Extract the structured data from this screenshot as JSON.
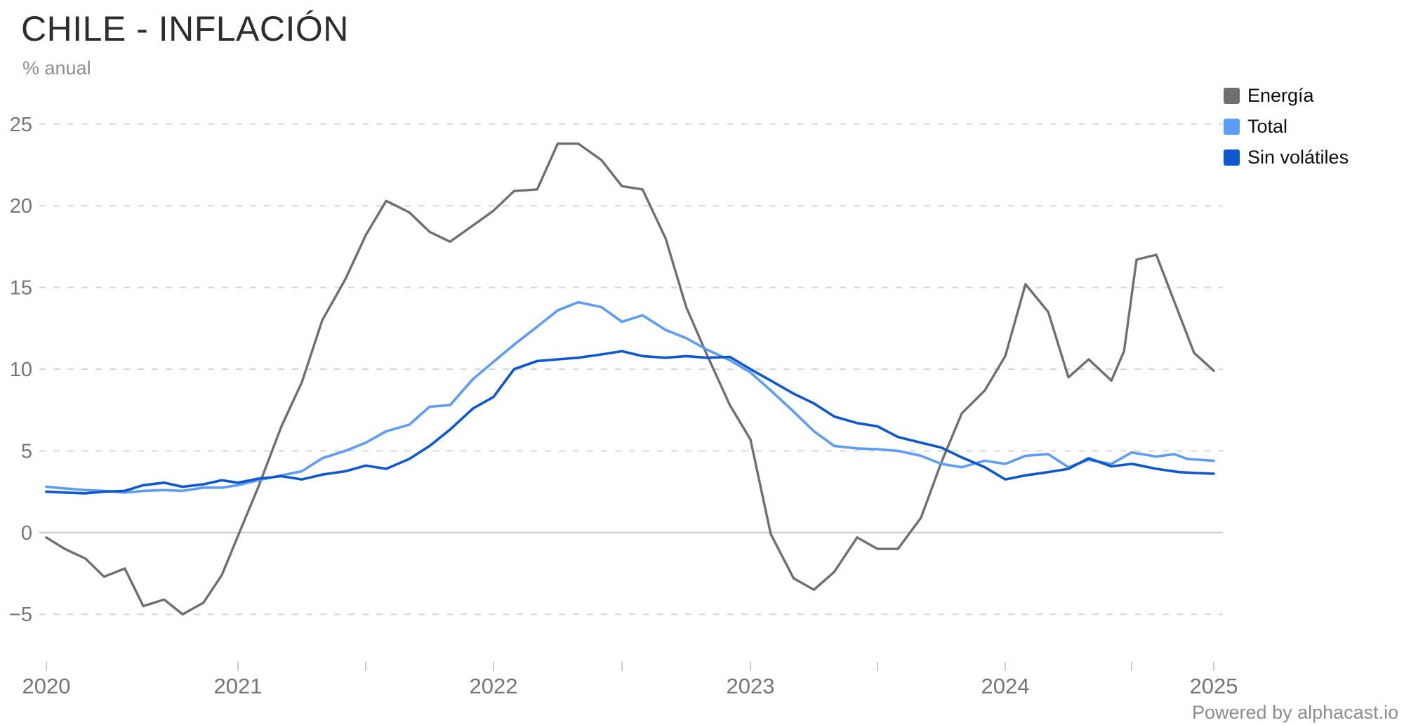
{
  "header": {
    "title": "CHILE - INFLACIÓN",
    "subtitle": "% anual"
  },
  "legend": {
    "items": [
      {
        "label": "Energía"
      },
      {
        "label": "Total"
      },
      {
        "label": "Sin volátiles"
      }
    ]
  },
  "footer": {
    "powered_by": "Powered by alphacast.io"
  },
  "colors": {
    "energia": "#6f6f6f",
    "total": "#5d9cf7",
    "sin_volatiles": "#0d57cf",
    "gridline": "#d7d7d7",
    "zero_line": "#c9c9c9",
    "axis_text": "#757575",
    "title_text": "#2d2d2d"
  },
  "chart_data": {
    "type": "line",
    "title": "CHILE - INFLACIÓN",
    "xlabel": "",
    "ylabel": "% anual",
    "x_unit": "decimal years (monthly points, Mar 2020 - Jan 2025)",
    "ylim": [
      -7.5,
      27
    ],
    "grid": "dashed horizontal gridlines, solid line at 0",
    "legend_position": "top-right",
    "y_ticks": [
      25,
      20,
      15,
      10,
      5,
      0,
      -5
    ],
    "x_ticks": [
      {
        "t": 2020.17,
        "label": "2020"
      },
      {
        "t": 2021.0,
        "label": "2021"
      },
      {
        "t": 2021.5,
        "label": ""
      },
      {
        "t": 2022.0,
        "label": "2022"
      },
      {
        "t": 2022.5,
        "label": ""
      },
      {
        "t": 2023.0,
        "label": "2023"
      },
      {
        "t": 2023.5,
        "label": ""
      },
      {
        "t": 2024.0,
        "label": "2024"
      },
      {
        "t": 2024.5,
        "label": ""
      },
      {
        "t": 2025.0,
        "label": "2025"
      }
    ],
    "series": [
      {
        "name": "Energía",
        "color": "#6f6f6f",
        "width": 3.4,
        "points": [
          [
            2020.17,
            -0.3
          ],
          [
            2020.25,
            -1.0
          ],
          [
            2020.34,
            -1.6
          ],
          [
            2020.42,
            -2.7
          ],
          [
            2020.51,
            -2.2
          ],
          [
            2020.59,
            -4.5
          ],
          [
            2020.68,
            -4.1
          ],
          [
            2020.76,
            -5.0
          ],
          [
            2020.85,
            -4.3
          ],
          [
            2020.93,
            -2.6
          ],
          [
            2021.0,
            -0.2
          ],
          [
            2021.08,
            2.8
          ],
          [
            2021.17,
            6.5
          ],
          [
            2021.25,
            9.2
          ],
          [
            2021.33,
            13.0
          ],
          [
            2021.42,
            15.5
          ],
          [
            2021.5,
            18.2
          ],
          [
            2021.58,
            20.3
          ],
          [
            2021.67,
            19.6
          ],
          [
            2021.75,
            18.4
          ],
          [
            2021.83,
            17.8
          ],
          [
            2021.92,
            18.8
          ],
          [
            2022.0,
            19.7
          ],
          [
            2022.08,
            20.9
          ],
          [
            2022.17,
            21.0
          ],
          [
            2022.25,
            23.8
          ],
          [
            2022.33,
            23.8
          ],
          [
            2022.42,
            22.8
          ],
          [
            2022.5,
            21.2
          ],
          [
            2022.58,
            21.0
          ],
          [
            2022.67,
            18.0
          ],
          [
            2022.75,
            13.8
          ],
          [
            2022.83,
            10.9
          ],
          [
            2022.92,
            7.8
          ],
          [
            2023.0,
            5.7
          ],
          [
            2023.08,
            -0.1
          ],
          [
            2023.17,
            -2.8
          ],
          [
            2023.25,
            -3.5
          ],
          [
            2023.33,
            -2.4
          ],
          [
            2023.42,
            -0.3
          ],
          [
            2023.5,
            -1.0
          ],
          [
            2023.58,
            -1.0
          ],
          [
            2023.67,
            0.9
          ],
          [
            2023.75,
            4.3
          ],
          [
            2023.83,
            7.3
          ],
          [
            2023.92,
            8.7
          ],
          [
            2024.0,
            10.8
          ],
          [
            2024.08,
            15.2
          ],
          [
            2024.17,
            13.5
          ],
          [
            2024.25,
            9.5
          ],
          [
            2024.33,
            10.6
          ],
          [
            2024.42,
            9.3
          ],
          [
            2024.47,
            11.1
          ],
          [
            2024.53,
            16.7
          ],
          [
            2024.65,
            17.0
          ],
          [
            2024.88,
            11.0
          ],
          [
            2025.0,
            9.9
          ]
        ]
      },
      {
        "name": "Total",
        "color": "#5d9cf7",
        "width": 3.6,
        "points": [
          [
            2020.17,
            2.8
          ],
          [
            2020.25,
            2.7
          ],
          [
            2020.34,
            2.6
          ],
          [
            2020.42,
            2.55
          ],
          [
            2020.51,
            2.45
          ],
          [
            2020.59,
            2.55
          ],
          [
            2020.68,
            2.6
          ],
          [
            2020.76,
            2.55
          ],
          [
            2020.85,
            2.75
          ],
          [
            2020.93,
            2.75
          ],
          [
            2021.0,
            2.9
          ],
          [
            2021.08,
            3.2
          ],
          [
            2021.17,
            3.5
          ],
          [
            2021.25,
            3.75
          ],
          [
            2021.33,
            4.55
          ],
          [
            2021.42,
            5.0
          ],
          [
            2021.5,
            5.5
          ],
          [
            2021.58,
            6.2
          ],
          [
            2021.67,
            6.6
          ],
          [
            2021.75,
            7.7
          ],
          [
            2021.83,
            7.8
          ],
          [
            2021.92,
            9.4
          ],
          [
            2022.0,
            10.45
          ],
          [
            2022.08,
            11.5
          ],
          [
            2022.17,
            12.6
          ],
          [
            2022.25,
            13.6
          ],
          [
            2022.33,
            14.1
          ],
          [
            2022.42,
            13.8
          ],
          [
            2022.5,
            12.9
          ],
          [
            2022.58,
            13.3
          ],
          [
            2022.67,
            12.4
          ],
          [
            2022.75,
            11.9
          ],
          [
            2022.83,
            11.2
          ],
          [
            2022.92,
            10.55
          ],
          [
            2023.0,
            9.8
          ],
          [
            2023.08,
            8.7
          ],
          [
            2023.17,
            7.4
          ],
          [
            2023.25,
            6.2
          ],
          [
            2023.33,
            5.3
          ],
          [
            2023.42,
            5.15
          ],
          [
            2023.5,
            5.1
          ],
          [
            2023.58,
            5.0
          ],
          [
            2023.67,
            4.7
          ],
          [
            2023.75,
            4.2
          ],
          [
            2023.83,
            4.0
          ],
          [
            2023.92,
            4.4
          ],
          [
            2024.0,
            4.2
          ],
          [
            2024.08,
            4.7
          ],
          [
            2024.17,
            4.8
          ],
          [
            2024.25,
            4.0
          ],
          [
            2024.33,
            4.45
          ],
          [
            2024.42,
            4.2
          ],
          [
            2024.5,
            4.9
          ],
          [
            2024.65,
            4.65
          ],
          [
            2024.76,
            4.8
          ],
          [
            2024.84,
            4.5
          ],
          [
            2025.0,
            4.4
          ]
        ]
      },
      {
        "name": "Sin volátiles",
        "color": "#0d57cf",
        "width": 3.6,
        "points": [
          [
            2020.17,
            2.5
          ],
          [
            2020.25,
            2.45
          ],
          [
            2020.34,
            2.4
          ],
          [
            2020.42,
            2.5
          ],
          [
            2020.51,
            2.55
          ],
          [
            2020.59,
            2.9
          ],
          [
            2020.68,
            3.05
          ],
          [
            2020.76,
            2.8
          ],
          [
            2020.85,
            2.95
          ],
          [
            2020.93,
            3.2
          ],
          [
            2021.0,
            3.05
          ],
          [
            2021.08,
            3.3
          ],
          [
            2021.17,
            3.45
          ],
          [
            2021.25,
            3.25
          ],
          [
            2021.33,
            3.55
          ],
          [
            2021.42,
            3.75
          ],
          [
            2021.5,
            4.1
          ],
          [
            2021.58,
            3.9
          ],
          [
            2021.67,
            4.5
          ],
          [
            2021.75,
            5.3
          ],
          [
            2021.83,
            6.3
          ],
          [
            2021.92,
            7.6
          ],
          [
            2022.0,
            8.3
          ],
          [
            2022.08,
            10.0
          ],
          [
            2022.17,
            10.5
          ],
          [
            2022.25,
            10.6
          ],
          [
            2022.33,
            10.7
          ],
          [
            2022.42,
            10.9
          ],
          [
            2022.5,
            11.1
          ],
          [
            2022.58,
            10.8
          ],
          [
            2022.67,
            10.7
          ],
          [
            2022.75,
            10.8
          ],
          [
            2022.83,
            10.7
          ],
          [
            2022.92,
            10.75
          ],
          [
            2023.0,
            10.0
          ],
          [
            2023.08,
            9.3
          ],
          [
            2023.17,
            8.5
          ],
          [
            2023.25,
            7.9
          ],
          [
            2023.33,
            7.1
          ],
          [
            2023.42,
            6.7
          ],
          [
            2023.5,
            6.5
          ],
          [
            2023.58,
            5.85
          ],
          [
            2023.67,
            5.5
          ],
          [
            2023.75,
            5.2
          ],
          [
            2023.83,
            4.6
          ],
          [
            2023.92,
            4.0
          ],
          [
            2024.0,
            3.25
          ],
          [
            2024.08,
            3.5
          ],
          [
            2024.17,
            3.7
          ],
          [
            2024.25,
            3.9
          ],
          [
            2024.33,
            4.55
          ],
          [
            2024.42,
            4.05
          ],
          [
            2024.5,
            4.2
          ],
          [
            2024.53,
            4.15
          ],
          [
            2024.65,
            3.9
          ],
          [
            2024.79,
            3.7
          ],
          [
            2024.88,
            3.65
          ],
          [
            2025.0,
            3.6
          ]
        ]
      }
    ]
  }
}
